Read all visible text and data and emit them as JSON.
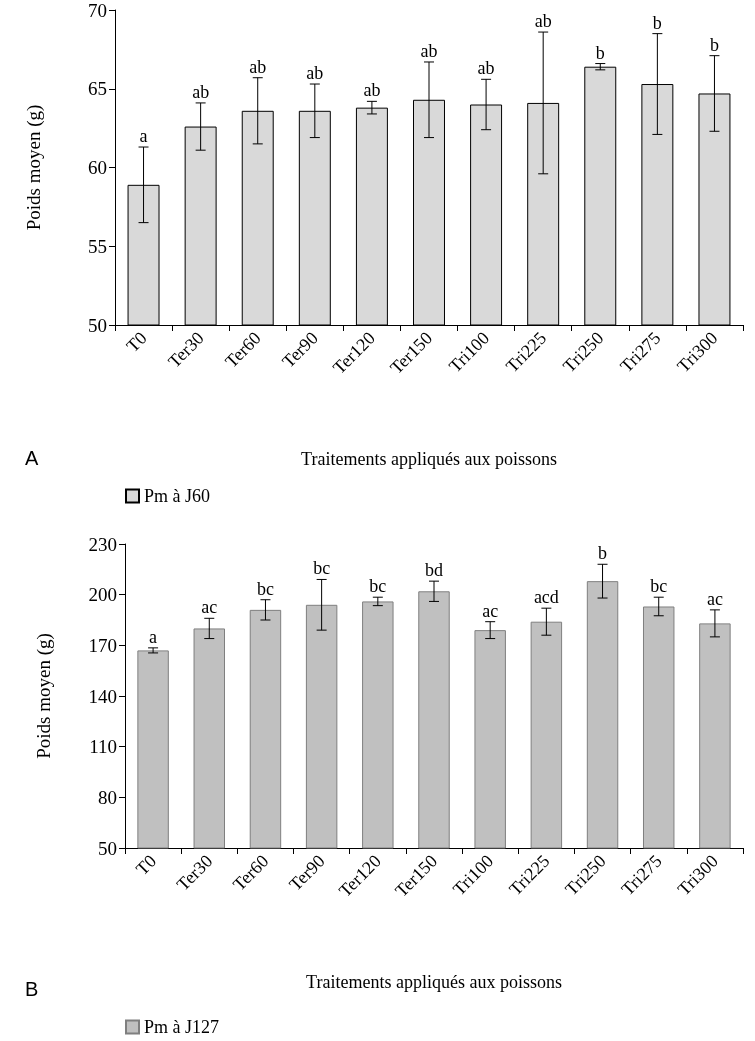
{
  "chart_data": [
    {
      "type": "bar",
      "xlabel": "Traitements appliqués aux poissons",
      "ylabel": "Poids moyen (g)",
      "categories": [
        "T0",
        "Ter30",
        "Ter60",
        "Ter90",
        "Ter120",
        "Ter150",
        "Tri100",
        "Tri225",
        "Tri250",
        "Tri275",
        "Tri300"
      ],
      "series": [
        {
          "name": "Pm à J60",
          "color": "#d9d9d9",
          "values": [
            58.9,
            62.6,
            63.6,
            63.6,
            63.8,
            64.3,
            64.0,
            64.1,
            66.4,
            65.3,
            64.7
          ],
          "errors": [
            2.4,
            1.5,
            2.1,
            1.7,
            0.4,
            2.4,
            1.6,
            4.5,
            0.2,
            3.2,
            2.4
          ]
        }
      ],
      "ylim": [
        50,
        70
      ],
      "yticks": [
        50,
        55,
        60,
        65,
        70
      ],
      "legend": "bottom left",
      "annotations": [
        "A",
        {
          "text": "a",
          "x": "T0",
          "y": 61.3
        },
        {
          "text": "ab",
          "x": "Ter30",
          "y": 64.1
        },
        {
          "text": "ab",
          "x": "Ter60",
          "y": 65.7
        },
        {
          "text": "ab",
          "x": "Ter90",
          "y": 65.3
        },
        {
          "text": "ab",
          "x": "Ter120",
          "y": 64.2
        },
        {
          "text": "ab",
          "x": "Ter150",
          "y": 66.7
        },
        {
          "text": "ab",
          "x": "Tri100",
          "y": 65.6
        },
        {
          "text": "ab",
          "x": "Tri225",
          "y": 68.6
        },
        {
          "text": "b",
          "x": "Tri250",
          "y": 66.6
        },
        {
          "text": "b",
          "x": "Tri275",
          "y": 68.5
        },
        {
          "text": "b",
          "x": "Tri300",
          "y": 67.1
        }
      ]
    },
    {
      "type": "bar",
      "xlabel": "Traitements appliqués aux poissons",
      "ylabel": "Poids moyen (g)",
      "categories": [
        "T0",
        "Ter30",
        "Ter60",
        "Ter90",
        "Ter120",
        "Ter150",
        "Tri100",
        "Tri225",
        "Tri250",
        "Tri275",
        "Tri300"
      ],
      "series": [
        {
          "name": "Pm à J127",
          "color": "#c0c0c0",
          "values": [
            167,
            180,
            191,
            194,
            196,
            202,
            179,
            184,
            208,
            193,
            183
          ],
          "errors": [
            1.5,
            6,
            6,
            15,
            2.5,
            6,
            5,
            8,
            10,
            5.5,
            8
          ]
        }
      ],
      "ylim": [
        50,
        230
      ],
      "yticks": [
        50,
        80,
        110,
        140,
        170,
        200,
        230
      ],
      "legend": "bottom left",
      "annotations": [
        "B",
        {
          "text": "a",
          "x": "T0",
          "y": 168.5
        },
        {
          "text": "ac",
          "x": "Ter30",
          "y": 186
        },
        {
          "text": "bc",
          "x": "Ter60",
          "y": 197
        },
        {
          "text": "bc",
          "x": "Ter90",
          "y": 209
        },
        {
          "text": "bc",
          "x": "Ter120",
          "y": 198.5
        },
        {
          "text": "bd",
          "x": "Ter150",
          "y": 208
        },
        {
          "text": "ac",
          "x": "Tri100",
          "y": 184
        },
        {
          "text": "acd",
          "x": "Tri225",
          "y": 192
        },
        {
          "text": "b",
          "x": "Tri250",
          "y": 218
        },
        {
          "text": "bc",
          "x": "Tri275",
          "y": 198.5
        },
        {
          "text": "ac",
          "x": "Tri300",
          "y": 191
        }
      ]
    }
  ]
}
